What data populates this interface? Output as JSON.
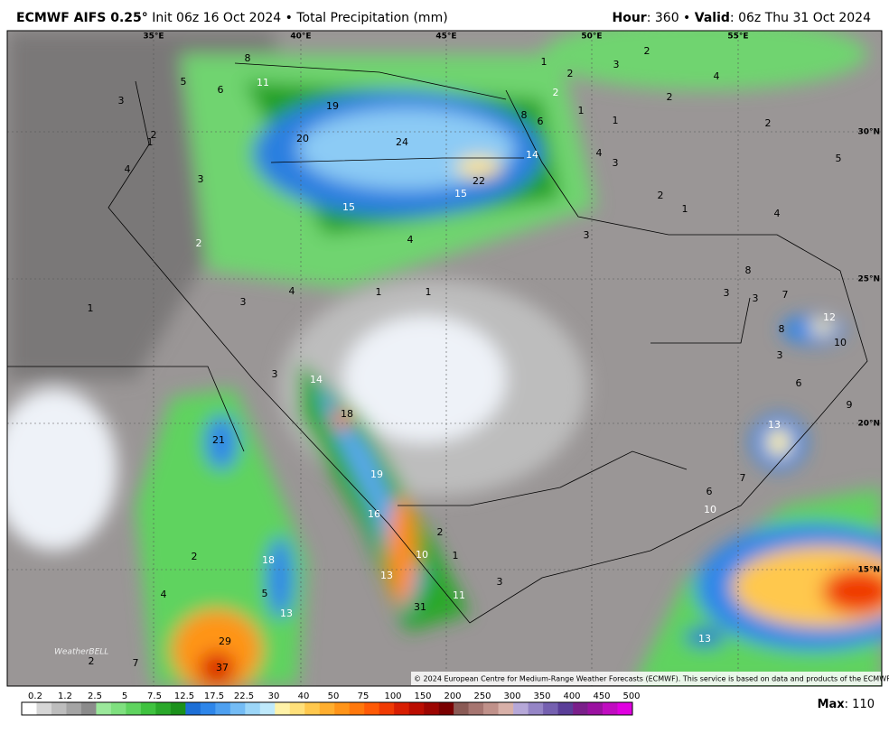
{
  "header": {
    "model": "ECMWF AIFS 0.25",
    "degree": "°",
    "init": "Init 06z 16 Oct 2024 • Total Precipitation (mm)",
    "hour_label": "Hour",
    "hour_value": ": 360 •",
    "valid_label": "Valid",
    "valid_value": ": 06z Thu 31 Oct 2024"
  },
  "map": {
    "longitudes": [
      "35°E",
      "40°E",
      "45°E",
      "50°E",
      "55°E"
    ],
    "latitudes": [
      "30°N",
      "25°N",
      "20°N",
      "15°N"
    ],
    "labels": [
      "8",
      "11",
      "5",
      "6",
      "3",
      "19",
      "20",
      "24",
      "22",
      "14",
      "15",
      "15",
      "4",
      "3",
      "4",
      "4",
      "3",
      "1",
      "1",
      "8",
      "6",
      "1",
      "2",
      "3",
      "2",
      "4",
      "2",
      "2",
      "1",
      "1",
      "2",
      "5",
      "4",
      "3",
      "1",
      "2",
      "4",
      "3",
      "8",
      "3",
      "3",
      "7",
      "8",
      "12",
      "10",
      "3",
      "6",
      "9",
      "13",
      "7",
      "6",
      "10",
      "14",
      "18",
      "21",
      "19",
      "16",
      "10",
      "13",
      "11",
      "31",
      "2",
      "1",
      "3",
      "3",
      "18",
      "5",
      "13",
      "2",
      "4",
      "29",
      "37",
      "7",
      "2",
      "13",
      "1",
      "2",
      "2",
      "1"
    ],
    "logo": "WeatherBELL",
    "copyright": "© 2024 European Centre for Medium-Range Weather Forecasts (ECMWF). This service is based on data and products of the ECMWF."
  },
  "legend": {
    "labels": [
      "0.2",
      "1.2",
      "2.5",
      "5",
      "7.5",
      "12.5",
      "17.5",
      "22.5",
      "30",
      "40",
      "50",
      "75",
      "100",
      "150",
      "200",
      "250",
      "300",
      "350",
      "400",
      "450",
      "500"
    ],
    "colors": [
      "#ffffff",
      "#d6d6d6",
      "#bdbdbd",
      "#a4a4a4",
      "#8b8b8b",
      "#9be89b",
      "#7fe07f",
      "#5fd35f",
      "#3fc23f",
      "#2aa82a",
      "#1b911b",
      "#1d6fd6",
      "#2e86ea",
      "#4ea0f0",
      "#74bcf5",
      "#9cd6f8",
      "#bfe9fb",
      "#fff2a8",
      "#ffe07a",
      "#ffc84d",
      "#ffae2e",
      "#ff9418",
      "#ff780c",
      "#ff5a06",
      "#f03a03",
      "#d81e02",
      "#bb0d01",
      "#9c0501",
      "#7a0000",
      "#8a5a55",
      "#a67570",
      "#c0918a",
      "#d8b0a8",
      "#b6a8d8",
      "#9585c6",
      "#7560b0",
      "#5a3e98",
      "#7a1f8a",
      "#9a11a0",
      "#c00cc0",
      "#e000e0"
    ]
  },
  "max": {
    "label": "Max",
    "value": ": 110"
  }
}
